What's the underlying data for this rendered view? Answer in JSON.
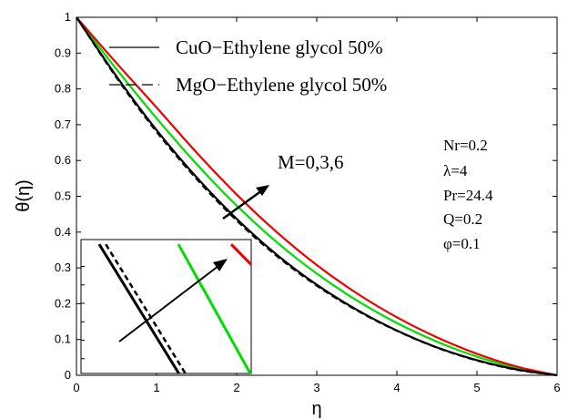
{
  "chart_data": {
    "type": "line",
    "xlabel": "η",
    "ylabel": "θ(η)",
    "xlim": [
      0,
      6
    ],
    "ylim": [
      0,
      1
    ],
    "xticks": [
      "0",
      "1",
      "2",
      "3",
      "4",
      "5",
      "6"
    ],
    "yticks": [
      "0",
      "0.1",
      "0.2",
      "0.3",
      "0.4",
      "0.5",
      "0.6",
      "0.7",
      "0.8",
      "0.9",
      "1"
    ],
    "grid": false,
    "legend_position": "top",
    "legend": [
      {
        "label": "CuO−Ethylene glycol 50%",
        "linestyle": "solid"
      },
      {
        "label": "MgO−Ethylene glycol 50%",
        "linestyle": "dashed"
      }
    ],
    "annotation": "M=0,3,6",
    "parameters": [
      "Nr=0.2",
      "λ=4",
      "Pr=24.4",
      "Q=0.2",
      "φ=0.1"
    ],
    "series": [
      {
        "M": 0,
        "color": "#000000",
        "linestyle": "solid",
        "x": [
          0,
          0.5,
          1,
          1.5,
          2,
          2.5,
          3,
          3.5,
          4,
          4.5,
          5,
          5.5,
          6
        ],
        "y": [
          1,
          0.835,
          0.685,
          0.553,
          0.437,
          0.337,
          0.253,
          0.183,
          0.125,
          0.078,
          0.042,
          0.016,
          0
        ]
      },
      {
        "M": 0,
        "color": "#000000",
        "linestyle": "dashed",
        "x": [
          0,
          0.5,
          1,
          1.5,
          2,
          2.5,
          3,
          3.5,
          4,
          4.5,
          5,
          5.5,
          6
        ],
        "y": [
          1,
          0.831,
          0.68,
          0.548,
          0.432,
          0.333,
          0.25,
          0.181,
          0.124,
          0.077,
          0.041,
          0.015,
          0
        ]
      },
      {
        "M": 3,
        "color": "#00dd00",
        "linestyle": "solid",
        "x": [
          0,
          0.5,
          1,
          1.5,
          2,
          2.5,
          3,
          3.5,
          4,
          4.5,
          5,
          5.5,
          6
        ],
        "y": [
          1,
          0.855,
          0.718,
          0.59,
          0.474,
          0.372,
          0.284,
          0.209,
          0.146,
          0.094,
          0.052,
          0.02,
          0
        ]
      },
      {
        "M": 6,
        "color": "#ee0000",
        "linestyle": "solid",
        "x": [
          0,
          0.5,
          1,
          1.5,
          2,
          2.5,
          3,
          3.5,
          4,
          4.5,
          5,
          5.5,
          6
        ],
        "y": [
          1,
          0.872,
          0.748,
          0.622,
          0.505,
          0.4,
          0.308,
          0.229,
          0.162,
          0.106,
          0.06,
          0.024,
          0
        ]
      }
    ],
    "inset": {
      "series": [
        {
          "M": 0,
          "color": "#000000",
          "linestyle": "solid",
          "x": [
            0,
            1
          ],
          "y": [
            0.36,
            0
          ]
        },
        {
          "M": 0,
          "color": "#000000",
          "linestyle": "dashed",
          "x": [
            0,
            1
          ],
          "y": [
            0.36,
            0
          ]
        },
        {
          "M": 3,
          "color": "#00dd00",
          "linestyle": "solid",
          "x": [
            0,
            1
          ],
          "y": [
            0.36,
            0
          ]
        },
        {
          "M": 6,
          "color": "#ee0000",
          "linestyle": "solid",
          "x": [
            0,
            1
          ],
          "y": [
            0.36,
            0.16
          ]
        }
      ]
    }
  }
}
